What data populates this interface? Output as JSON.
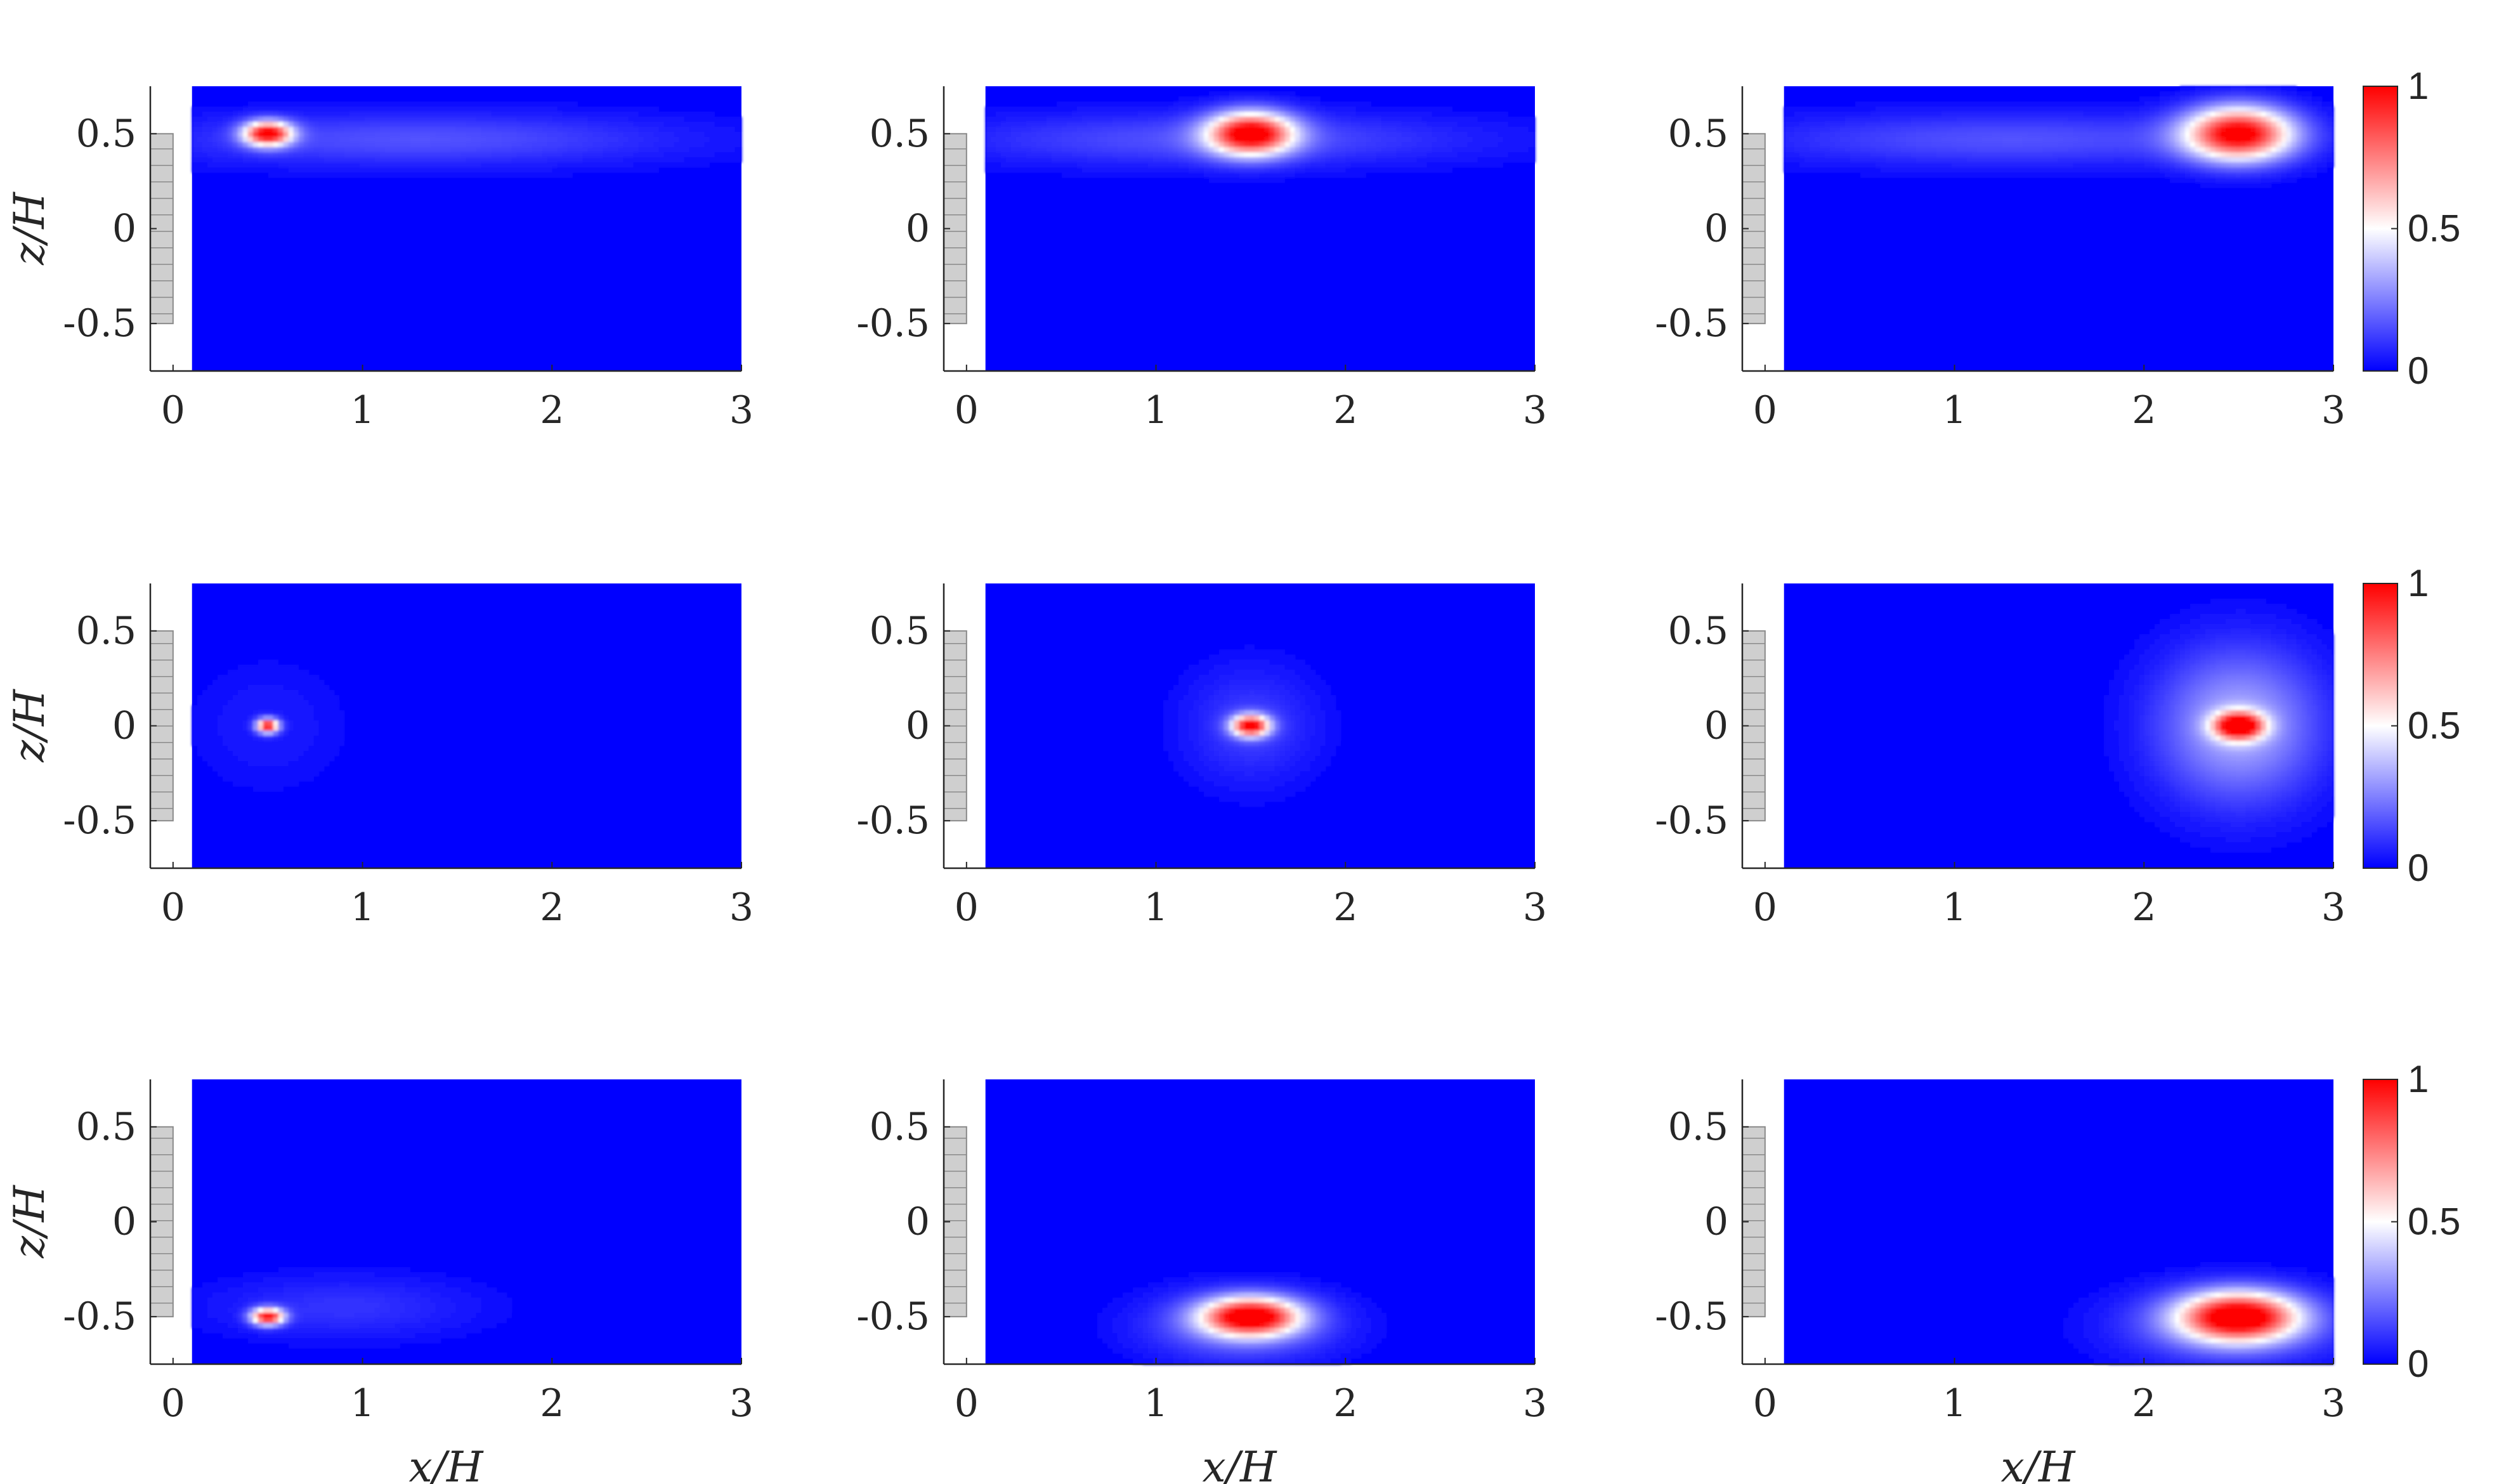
{
  "chart_data": {
    "type": "heatmap",
    "layout": "3x3 grid of panels",
    "colorscale": {
      "name": "blue-white-red",
      "stops": [
        {
          "value": 0,
          "color": "#0000ff"
        },
        {
          "value": 0.5,
          "color": "#ffffff"
        },
        {
          "value": 1,
          "color": "#ff0000"
        }
      ],
      "range": [
        0,
        1
      ],
      "ticks": [
        "0",
        "0.5",
        "1"
      ]
    },
    "xlabel": "x/H",
    "ylabel": "z/H",
    "xlim": [
      -0.12,
      3
    ],
    "ylim": [
      -0.75,
      0.75
    ],
    "x_ticks": [
      "0",
      "1",
      "2",
      "3"
    ],
    "y_ticks": [
      "0.5",
      "0",
      "-0.5"
    ],
    "x_tick_values": [
      0,
      1,
      2,
      3
    ],
    "y_tick_values": [
      0.5,
      0,
      -0.5
    ],
    "data_region_x_start": 0.1,
    "obstacle": {
      "z_range": [
        -0.5,
        0.5
      ],
      "color": "#c8c8c8",
      "hatch": "horizontal lines"
    },
    "panels": [
      {
        "row": 1,
        "col": 1,
        "peak": {
          "x": 0.5,
          "z": 0.5,
          "value": 1.0,
          "sx": 0.09,
          "sz": 0.045
        },
        "halo": {
          "x": 1.3,
          "z": 0.47,
          "value": 0.16,
          "sx": 1.0,
          "sz": 0.1
        }
      },
      {
        "row": 1,
        "col": 2,
        "peak": {
          "x": 1.5,
          "z": 0.5,
          "value": 1.0,
          "sx": 0.16,
          "sz": 0.08
        },
        "halo": {
          "x": 1.3,
          "z": 0.47,
          "value": 0.16,
          "sx": 1.0,
          "sz": 0.1
        }
      },
      {
        "row": 1,
        "col": 3,
        "peak": {
          "x": 2.5,
          "z": 0.5,
          "value": 1.0,
          "sx": 0.2,
          "sz": 0.1
        },
        "halo": {
          "x": 1.3,
          "z": 0.47,
          "value": 0.16,
          "sx": 1.0,
          "sz": 0.1
        }
      },
      {
        "row": 2,
        "col": 1,
        "peak": {
          "x": 0.5,
          "z": 0.0,
          "value": 1.0,
          "sx": 0.04,
          "sz": 0.025
        },
        "halo": {
          "x": 0.5,
          "z": 0.0,
          "value": 0.05,
          "sx": 0.3,
          "sz": 0.25
        }
      },
      {
        "row": 2,
        "col": 2,
        "peak": {
          "x": 1.5,
          "z": 0.0,
          "value": 1.0,
          "sx": 0.07,
          "sz": 0.04
        },
        "halo": {
          "x": 1.5,
          "z": 0.0,
          "value": 0.12,
          "sx": 0.25,
          "sz": 0.22
        }
      },
      {
        "row": 2,
        "col": 3,
        "peak": {
          "x": 2.5,
          "z": 0.0,
          "value": 1.0,
          "sx": 0.09,
          "sz": 0.05
        },
        "halo": {
          "x": 2.5,
          "z": 0.0,
          "value": 0.35,
          "sx": 0.3,
          "sz": 0.28
        }
      },
      {
        "row": 3,
        "col": 1,
        "peak": {
          "x": 0.5,
          "z": -0.5,
          "value": 1.0,
          "sx": 0.06,
          "sz": 0.03
        },
        "halo": {
          "x": 0.9,
          "z": -0.45,
          "value": 0.1,
          "sx": 0.5,
          "sz": 0.12
        }
      },
      {
        "row": 3,
        "col": 2,
        "peak": {
          "x": 1.5,
          "z": -0.5,
          "value": 1.0,
          "sx": 0.18,
          "sz": 0.07
        },
        "halo": {
          "x": 1.45,
          "z": -0.55,
          "value": 0.22,
          "sx": 0.35,
          "sz": 0.13
        }
      },
      {
        "row": 3,
        "col": 3,
        "peak": {
          "x": 2.5,
          "z": -0.5,
          "value": 1.0,
          "sx": 0.22,
          "sz": 0.09
        },
        "halo": {
          "x": 2.45,
          "z": -0.55,
          "value": 0.22,
          "sx": 0.4,
          "sz": 0.14
        }
      }
    ]
  }
}
